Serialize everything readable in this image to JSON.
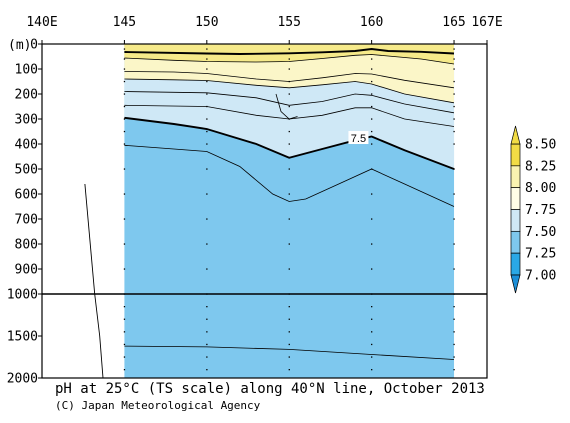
{
  "chart_data": {
    "type": "contour",
    "title": "pH at 25°C (TS scale) along 40°N line, October 2013",
    "credit": "(C) Japan Meteorological Agency",
    "xlabel": "",
    "ylabel": "(m)",
    "x_ticks": [
      {
        "value": 140,
        "label": "140E"
      },
      {
        "value": 145,
        "label": "145"
      },
      {
        "value": 150,
        "label": "150"
      },
      {
        "value": 155,
        "label": "155"
      },
      {
        "value": 160,
        "label": "160"
      },
      {
        "value": 165,
        "label": "165"
      },
      {
        "value": 167,
        "label": "167E"
      }
    ],
    "xlim": [
      140,
      167
    ],
    "y_ticks_upper": [
      0,
      100,
      200,
      300,
      400,
      500,
      600,
      700,
      800,
      900,
      1000
    ],
    "y_ticks_lower": [
      1500,
      2000
    ],
    "ylim": [
      2000,
      0
    ],
    "y_scale_break": 1000,
    "data_extent_x": [
      145,
      165
    ],
    "contour_levels": [
      7.0,
      7.25,
      7.5,
      7.75,
      8.0,
      8.25,
      8.5
    ],
    "contour_label": "7.5",
    "colorbar": {
      "labels": [
        "8.50",
        "8.25",
        "8.00",
        "7.75",
        "7.50",
        "7.25",
        "7.00"
      ],
      "colors": [
        "#f2dc45",
        "#faf3b0",
        "#fffde6",
        "#cfe8f6",
        "#7ec8ee",
        "#2aa8e6"
      ]
    },
    "fill_colors": {
      "band_7_25_7_50": "#7ec8ee",
      "band_7_50_7_75": "#cfe8f6",
      "band_7_75_8_00": "#fbf6c8",
      "band_8_00_8_25": "#f6ea8a"
    }
  }
}
